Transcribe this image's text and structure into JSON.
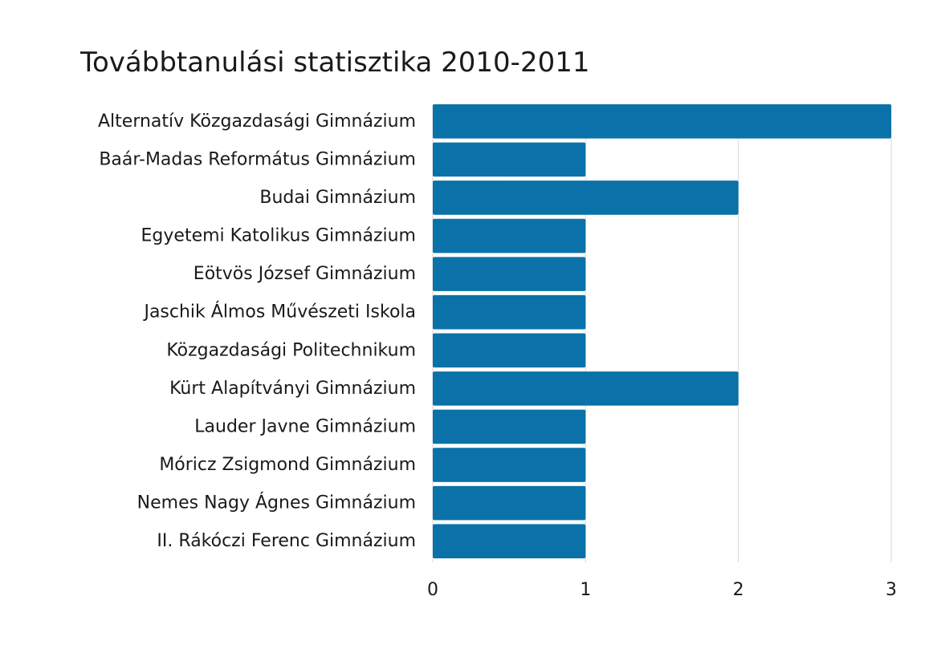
{
  "chart_data": {
    "type": "bar",
    "orientation": "horizontal",
    "title": "Továbbtanulási statisztika 2010-2011",
    "categories": [
      "Alternatív Közgazdasági Gimnázium",
      "Baár-Madas Református Gimnázium",
      "Budai Gimnázium",
      "Egyetemi Katolikus Gimnázium",
      "Eötvös József Gimnázium",
      "Jaschik Álmos Művészeti Iskola",
      "Közgazdasági Politechnikum",
      "Kürt Alapítványi Gimnázium",
      "Lauder Javne Gimnázium",
      "Móricz Zsigmond Gimnázium",
      "Nemes Nagy Ágnes Gimnázium",
      "II. Rákóczi Ferenc Gimnázium"
    ],
    "values": [
      3,
      1,
      2,
      1,
      1,
      1,
      1,
      2,
      1,
      1,
      1,
      1
    ],
    "xlim": [
      0,
      3
    ],
    "xticks": [
      "0",
      "1",
      "2",
      "3"
    ],
    "grid": true,
    "legend": "none",
    "bar_color": "#0a72a8",
    "grid_color": "#d9d9d9",
    "text_color": "#1a1a1a"
  }
}
